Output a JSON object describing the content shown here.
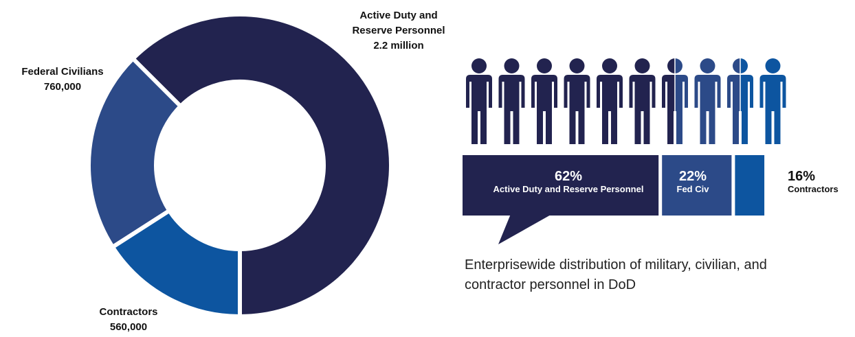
{
  "colors": {
    "active": "#22234f",
    "federal": "#2c4a88",
    "contractors": "#0d55a0",
    "gap": "#ffffff"
  },
  "chart_data": [
    {
      "type": "pie",
      "title": "",
      "variant": "donut",
      "series": [
        {
          "name": "Active Duty and Reserve Personnel",
          "label_lines": [
            "Active Duty and",
            "Reserve Personnel",
            "2.2 million"
          ],
          "value": 2200000
        },
        {
          "name": "Federal Civilians",
          "label_lines": [
            "Federal Civilians",
            "760,000"
          ],
          "value": 760000
        },
        {
          "name": "Contractors",
          "label_lines": [
            "Contractors",
            "560,000"
          ],
          "value": 560000
        }
      ]
    },
    {
      "type": "bar",
      "title": "",
      "orientation": "horizontal-stacked",
      "series": [
        {
          "name": "Active Duty and Reserve Personnel",
          "pct_label": "62%",
          "value": 62
        },
        {
          "name": "Fed Civ",
          "pct_label": "22%",
          "value": 22
        },
        {
          "name": "Contractors",
          "pct_label": "16%",
          "value": 16
        }
      ],
      "pictogram": {
        "icons": 10,
        "unit_percent": 10
      }
    }
  ],
  "caption": "Enterprisewide distribution of military, civilian, and contractor personnel in DoD"
}
